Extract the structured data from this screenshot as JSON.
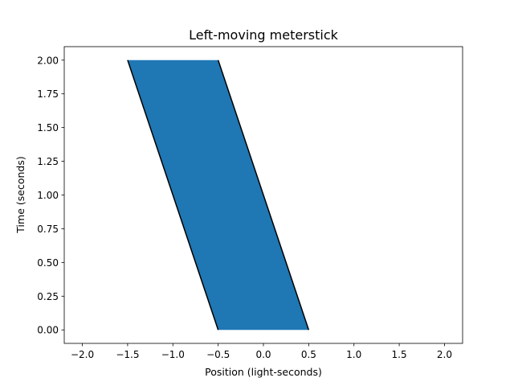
{
  "chart_data": {
    "type": "area",
    "title": "Left-moving meterstick",
    "xlabel": "Position (light-seconds)",
    "ylabel": "Time (seconds)",
    "xlim": [
      -2.2,
      2.2
    ],
    "ylim": [
      -0.1,
      2.1
    ],
    "xticks": [
      -2.0,
      -1.5,
      -1.0,
      -0.5,
      0.0,
      0.5,
      1.0,
      1.5,
      2.0
    ],
    "xtick_labels": [
      "−2.0",
      "−1.5",
      "−1.0",
      "−0.5",
      "0.0",
      "0.5",
      "1.0",
      "1.5",
      "2.0"
    ],
    "yticks": [
      0.0,
      0.25,
      0.5,
      0.75,
      1.0,
      1.25,
      1.5,
      1.75,
      2.0
    ],
    "ytick_labels": [
      "0.00",
      "0.25",
      "0.50",
      "0.75",
      "1.00",
      "1.25",
      "1.50",
      "1.75",
      "2.00"
    ],
    "grid": false,
    "fill_color": "#1f77b4",
    "line_color": "#000000",
    "series": [
      {
        "x": [
          -0.5,
          -1.5
        ],
        "y": [
          0.0,
          2.0
        ]
      },
      {
        "x": [
          0.5,
          -0.5
        ],
        "y": [
          0.0,
          2.0
        ]
      }
    ]
  }
}
